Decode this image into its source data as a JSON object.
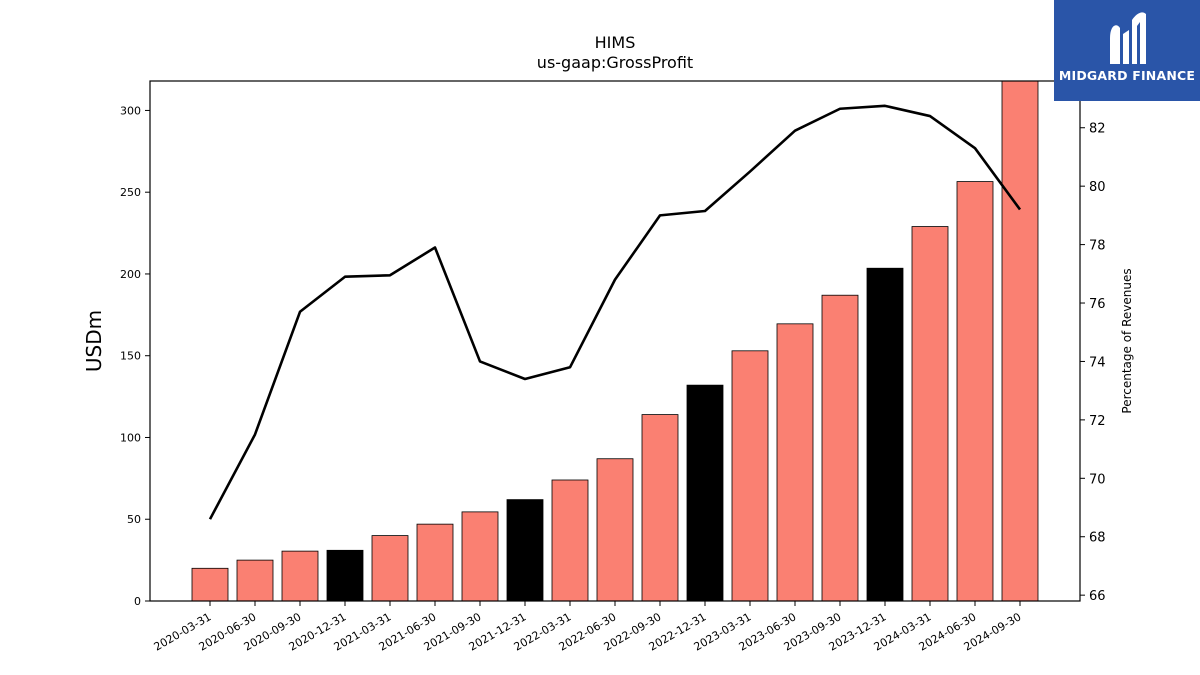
{
  "brand": {
    "name": "MIDGARD FINANCE"
  },
  "chart_data": {
    "type": "bar",
    "title": "HIMS",
    "subtitle": "us-gaap:GrossProfit",
    "ylabel": "USDm",
    "y2label": "Percentage of Revenues",
    "ylim": [
      0,
      318
    ],
    "y2lim": [
      65.8,
      83.6
    ],
    "yticks": [
      0,
      50,
      100,
      150,
      200,
      250,
      300
    ],
    "y2ticks": [
      66,
      68,
      70,
      72,
      74,
      76,
      78,
      80,
      82
    ],
    "categories": [
      "2020-03-31",
      "2020-06-30",
      "2020-09-30",
      "2020-12-31",
      "2021-03-31",
      "2021-06-30",
      "2021-09-30",
      "2021-12-31",
      "2022-03-31",
      "2022-06-30",
      "2022-09-30",
      "2022-12-31",
      "2023-03-31",
      "2023-06-30",
      "2023-09-30",
      "2023-12-31",
      "2024-03-31",
      "2024-06-30",
      "2024-09-30"
    ],
    "series": [
      {
        "type": "bar",
        "values": [
          20,
          25,
          30.5,
          31,
          40,
          47,
          54.5,
          62,
          74,
          87,
          114,
          132,
          153,
          169.5,
          187,
          203.5,
          229,
          256.5,
          318
        ],
        "colors": [
          "#fa8072",
          "#fa8072",
          "#fa8072",
          "#000000",
          "#fa8072",
          "#fa8072",
          "#fa8072",
          "#000000",
          "#fa8072",
          "#fa8072",
          "#fa8072",
          "#000000",
          "#fa8072",
          "#fa8072",
          "#fa8072",
          "#000000",
          "#fa8072",
          "#fa8072",
          "#fa8072"
        ]
      },
      {
        "type": "line",
        "axis": "right",
        "color": "#000000",
        "values": [
          68.6,
          71.5,
          75.7,
          76.9,
          76.95,
          77.9,
          74.0,
          73.4,
          73.8,
          76.8,
          79.0,
          79.15,
          80.5,
          81.9,
          82.65,
          82.75,
          82.4,
          81.3,
          79.2
        ]
      }
    ],
    "grid": false,
    "legend": "none"
  }
}
